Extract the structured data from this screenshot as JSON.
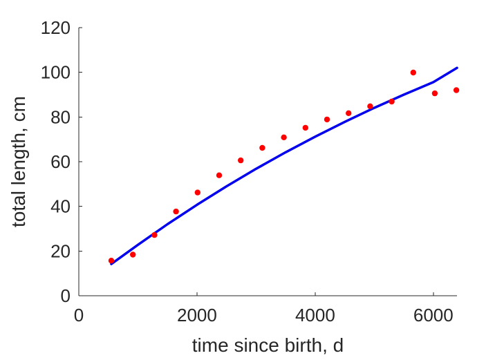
{
  "chart_data": {
    "type": "scatter",
    "title": "",
    "xlabel": "time since birth, d",
    "ylabel": "total length, cm",
    "xlim": [
      0,
      6400
    ],
    "ylim": [
      0,
      120
    ],
    "xticks": [
      0,
      2000,
      4000,
      6000
    ],
    "yticks": [
      0,
      20,
      40,
      60,
      80,
      100,
      120
    ],
    "grid": false,
    "legend": "none",
    "series": [
      {
        "kind": "points",
        "color": "#ff0000",
        "x": [
          550,
          915,
          1280,
          1645,
          2010,
          2375,
          2740,
          3105,
          3470,
          3835,
          4200,
          4565,
          4930,
          5295,
          5660,
          6025,
          6390
        ],
        "y": [
          15.7,
          18.4,
          27.2,
          37.7,
          46.2,
          53.9,
          60.6,
          66.2,
          70.9,
          75.2,
          78.9,
          81.7,
          84.8,
          86.9,
          99.9,
          90.6,
          92.0
        ]
      },
      {
        "kind": "line",
        "color": "#0000ee",
        "x": [
          550,
          1000,
          1500,
          2000,
          2500,
          3000,
          3500,
          4000,
          4500,
          5000,
          5500,
          6000,
          6400
        ],
        "y": [
          14.2,
          22.8,
          32.0,
          40.7,
          49.0,
          56.8,
          64.2,
          71.2,
          77.8,
          84.1,
          90.0,
          95.6,
          102.0
        ]
      }
    ]
  }
}
